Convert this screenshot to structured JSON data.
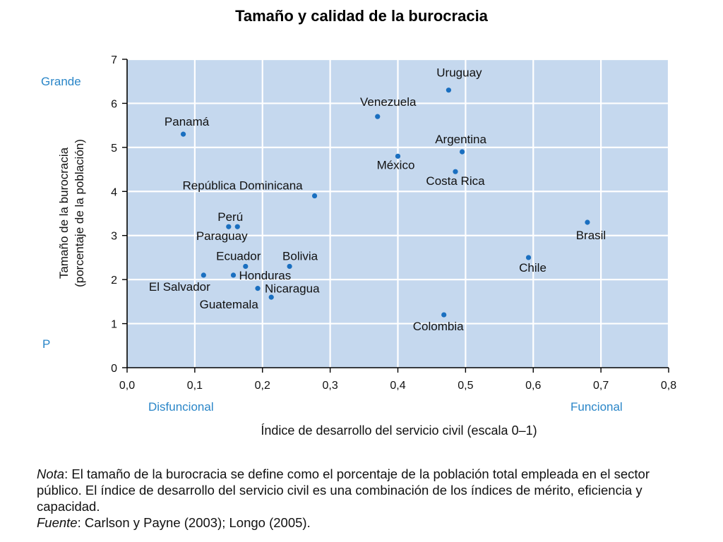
{
  "title": "Tamaño y calidad de la burocracia",
  "chart_data": {
    "type": "scatter",
    "xlabel": "Índice de desarrollo del servicio civil (escala 0–1)",
    "ylabel": "Tamaño de la burocracia",
    "ylabel_sub": "(porcentaje de la población)",
    "xlim": [
      0,
      0.8
    ],
    "ylim": [
      0,
      7
    ],
    "x_ticks": [
      "0,0",
      "0,1",
      "0,2",
      "0,3",
      "0,4",
      "0,5",
      "0,6",
      "0,7",
      "0,8"
    ],
    "y_ticks": [
      "0",
      "1",
      "2",
      "3",
      "4",
      "5",
      "6",
      "7"
    ],
    "grid": true,
    "colors": {
      "plot_bg": "#c5d8ee",
      "point": "#1a6fc0",
      "accent_text": "#2a86c8"
    },
    "y_annotations": {
      "top": "Grande",
      "bottom": "P"
    },
    "x_annotations": {
      "left": "Disfuncional",
      "right": "Funcional"
    },
    "points": [
      {
        "label": "Uruguay",
        "x": 0.475,
        "y": 6.3
      },
      {
        "label": "Venezuela",
        "x": 0.37,
        "y": 5.7
      },
      {
        "label": "Panamá",
        "x": 0.083,
        "y": 5.3
      },
      {
        "label": "Argentina",
        "x": 0.495,
        "y": 4.9
      },
      {
        "label": "México",
        "x": 0.4,
        "y": 4.8
      },
      {
        "label": "Costa Rica",
        "x": 0.485,
        "y": 4.45
      },
      {
        "label": "República Dominicana",
        "x": 0.277,
        "y": 3.9
      },
      {
        "label": "Brasil",
        "x": 0.68,
        "y": 3.3
      },
      {
        "label": "Perú",
        "x": 0.163,
        "y": 3.2
      },
      {
        "label": "Paraguay",
        "x": 0.15,
        "y": 3.2
      },
      {
        "label": "Chile",
        "x": 0.593,
        "y": 2.5
      },
      {
        "label": "Bolivia",
        "x": 0.24,
        "y": 2.3
      },
      {
        "label": "Ecuador",
        "x": 0.175,
        "y": 2.3
      },
      {
        "label": "Honduras",
        "x": 0.157,
        "y": 2.1
      },
      {
        "label": "El Salvador",
        "x": 0.113,
        "y": 2.1
      },
      {
        "label": "Nicaragua",
        "x": 0.193,
        "y": 1.8
      },
      {
        "label": "Guatemala",
        "x": 0.213,
        "y": 1.6
      },
      {
        "label": "Colombia",
        "x": 0.468,
        "y": 1.2
      }
    ]
  },
  "note": {
    "note_label": "Nota",
    "note_text": ": El tamaño de la burocracia se define como el porcentaje de la población total empleada en el sector público. El índice de desarrollo del servicio civil es una combinación de los índices de mérito, eficiencia y capacidad.",
    "source_label": "Fuente",
    "source_text": ": Carlson y Payne (2003); Longo (2005)."
  }
}
